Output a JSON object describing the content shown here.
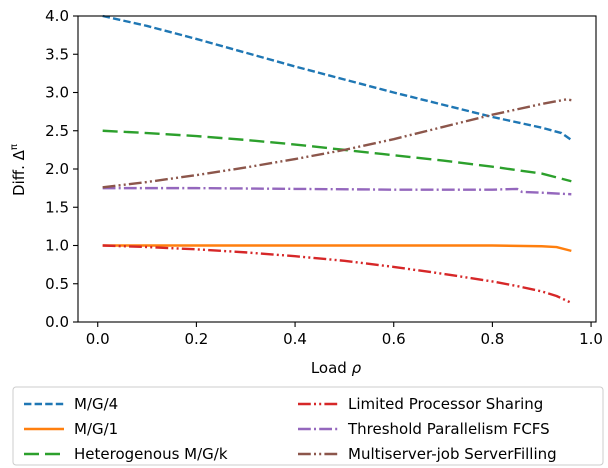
{
  "chart_data": {
    "type": "line",
    "xlabel": "Load ρ",
    "ylabel": "Diff. Δ^π",
    "xlim": [
      -0.04,
      1.01
    ],
    "ylim": [
      0.0,
      4.0
    ],
    "xticks": [
      "0.0",
      "0.2",
      "0.4",
      "0.6",
      "0.8",
      "1.0"
    ],
    "yticks": [
      "0.0",
      "0.5",
      "1.0",
      "1.5",
      "2.0",
      "2.5",
      "3.0",
      "3.5",
      "4.0"
    ],
    "grid": false,
    "legend_position": "below plot, two columns",
    "series": [
      {
        "name": "M/G/4",
        "color": "#1f77b4",
        "dash": "dashed",
        "x": [
          0.01,
          0.1,
          0.2,
          0.3,
          0.4,
          0.5,
          0.6,
          0.7,
          0.8,
          0.9,
          0.94,
          0.96
        ],
        "y": [
          4.0,
          3.87,
          3.7,
          3.52,
          3.34,
          3.17,
          3.0,
          2.84,
          2.68,
          2.54,
          2.47,
          2.38
        ]
      },
      {
        "name": "M/G/1",
        "color": "#ff7f0e",
        "dash": "solid",
        "x": [
          0.01,
          0.2,
          0.4,
          0.6,
          0.8,
          0.9,
          0.93,
          0.96
        ],
        "y": [
          1.0,
          1.0,
          1.0,
          1.0,
          1.0,
          0.99,
          0.98,
          0.93
        ]
      },
      {
        "name": "Heterogenous M/G/k",
        "color": "#2ca02c",
        "dash": "longdash",
        "x": [
          0.01,
          0.1,
          0.2,
          0.3,
          0.4,
          0.5,
          0.6,
          0.7,
          0.8,
          0.9,
          0.96
        ],
        "y": [
          2.5,
          2.47,
          2.43,
          2.38,
          2.32,
          2.25,
          2.18,
          2.11,
          2.03,
          1.94,
          1.84
        ]
      },
      {
        "name": "Limited Processor Sharing",
        "color": "#d62728",
        "dash": "dashdotdot",
        "x": [
          0.01,
          0.1,
          0.2,
          0.3,
          0.4,
          0.5,
          0.6,
          0.7,
          0.8,
          0.85,
          0.9,
          0.93,
          0.96
        ],
        "y": [
          1.0,
          0.98,
          0.95,
          0.91,
          0.86,
          0.8,
          0.72,
          0.63,
          0.53,
          0.47,
          0.4,
          0.34,
          0.25
        ]
      },
      {
        "name": "Threshold Parallelism FCFS",
        "color": "#9467bd",
        "dash": "dashdot",
        "x": [
          0.01,
          0.2,
          0.4,
          0.6,
          0.8,
          0.85,
          0.86,
          0.9,
          0.96
        ],
        "y": [
          1.75,
          1.75,
          1.74,
          1.73,
          1.73,
          1.74,
          1.7,
          1.69,
          1.67
        ]
      },
      {
        "name": "Multiserver-job ServerFilling",
        "color": "#8c564b",
        "dash": "dashdotdot",
        "x": [
          0.01,
          0.1,
          0.2,
          0.3,
          0.4,
          0.5,
          0.6,
          0.7,
          0.8,
          0.9,
          0.95,
          0.96
        ],
        "y": [
          1.76,
          1.83,
          1.92,
          2.02,
          2.13,
          2.25,
          2.39,
          2.55,
          2.71,
          2.85,
          2.91,
          2.9
        ]
      }
    ]
  }
}
